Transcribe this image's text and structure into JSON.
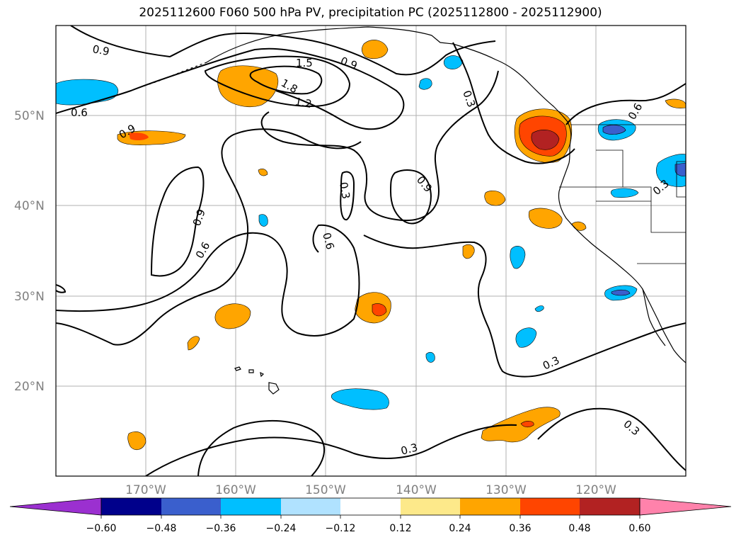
{
  "title": "2025112600 F060 500 hPa PV, precipitation PC (2025112800 - 2025112900)",
  "map": {
    "lon_range": [
      -180,
      -110
    ],
    "lat_range": [
      10,
      60
    ],
    "lat_labels": [
      "20°N",
      "30°N",
      "40°N",
      "50°N"
    ],
    "lon_labels": [
      "170°W",
      "160°W",
      "150°W",
      "140°W",
      "130°W",
      "120°W"
    ],
    "contour_labels": [
      "0.9",
      "0.6",
      "1.5",
      "1.8",
      "1.2",
      "0.9",
      "0.3",
      "0.9",
      "0.6",
      "0.3",
      "0.9",
      "0.9",
      "0.6",
      "0.6",
      "0.3",
      "0.3",
      "0.3",
      "0.3"
    ]
  },
  "colorbar": {
    "ticks": [
      "−0.60",
      "−0.48",
      "−0.36",
      "−0.24",
      "−0.12",
      "0.12",
      "0.24",
      "0.36",
      "0.48",
      "0.60"
    ],
    "colors": {
      "under": "#9b30d0",
      "b1": "#00008b",
      "b2": "#3a5fcd",
      "b3": "#00bfff",
      "b4": "#b0e2ff",
      "b5": "#ffffff",
      "b6": "#fde98a",
      "b7": "#ffa500",
      "b8": "#ff4500",
      "b9": "#b22222",
      "over": "#ff82ab"
    }
  }
}
